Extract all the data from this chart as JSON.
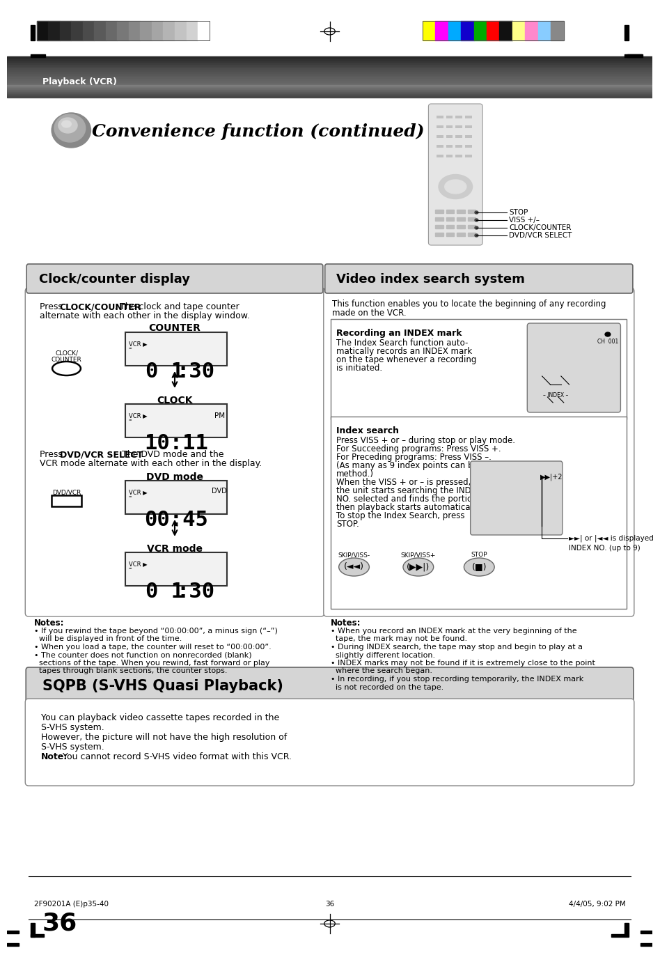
{
  "page_bg": "#ffffff",
  "header_text": "Playback (VCR)",
  "title_text": "Convenience function (continued)",
  "color_bars_left": [
    "#111111",
    "#1e1e1e",
    "#2d2d2d",
    "#3c3c3c",
    "#4b4b4b",
    "#5a5a5a",
    "#696969",
    "#787878",
    "#878787",
    "#969696",
    "#a5a5a5",
    "#b4b4b4",
    "#c3c3c3",
    "#d2d2d2",
    "#ffffff"
  ],
  "color_bars_right": [
    "#ffff00",
    "#ff00ff",
    "#00aaff",
    "#1100cc",
    "#00aa00",
    "#ff0000",
    "#111111",
    "#ffff88",
    "#ff88cc",
    "#88ccff",
    "#888888"
  ],
  "section_left_title": "Clock/counter display",
  "section_right_title": "Video index search system",
  "sqpb_title": "SQPB (S-VHS Quasi Playback)",
  "remote_labels": [
    "STOP",
    "VISS +/–",
    "CLOCK/COUNTER",
    "DVD/VCR SELECT"
  ],
  "index_intro_line1": "This function enables you to locate the beginning of any recording",
  "index_intro_line2": "made on the VCR.",
  "index_recording_title": "Recording an INDEX mark",
  "index_recording_text_lines": [
    "The Index Search function auto-",
    "matically records an INDEX mark",
    "on the tape whenever a recording",
    "is initiated."
  ],
  "index_search_title": "Index search",
  "index_search_lines": [
    "Press VISS + or – during stop or play mode.",
    "For Succeeding programs: Press VISS +.",
    "For Preceding programs: Press VISS –.",
    "(As many as 9 index points can be accessed via this",
    "method.)",
    "When the VISS + or – is pressed,",
    "the unit starts searching the INDEX",
    "NO. selected and finds the portion,",
    "then playback starts automatically.",
    "To stop the Index Search, press",
    "STOP."
  ],
  "index_displayed": "►►| or |◄◄ is displayed",
  "index_no": "INDEX NO. (up to 9)",
  "notes_left_title": "Notes:",
  "notes_left_lines": [
    "• If you rewind the tape beyond “00:00:00”, a minus sign (“–”)",
    "  will be displayed in front of the time.",
    "• When you load a tape, the counter will reset to “00:00:00”.",
    "• The counter does not function on nonrecorded (blank)",
    "  sections of the tape. When you rewind, fast forward or play",
    "  tapes through blank sections, the counter stops."
  ],
  "notes_right_title": "Notes:",
  "notes_right_lines": [
    "• When you record an INDEX mark at the very beginning of the",
    "  tape, the mark may not be found.",
    "• During INDEX search, the tape may stop and begin to play at a",
    "  slightly different location.",
    "• INDEX marks may not be found if it is extremely close to the point",
    "  where the search began.",
    "• In recording, if you stop recording temporarily, the INDEX mark",
    "  is not recorded on the tape."
  ],
  "sqpb_lines": [
    "You can playback video cassette tapes recorded in the",
    "S-VHS system.",
    "However, the picture will not have the high resolution of",
    "S-VHS system."
  ],
  "sqpb_note": "Note:",
  "sqpb_note_rest": " You cannot record S-VHS video format with this VCR.",
  "page_number": "36",
  "footer_left": "2F90201A (E)p35-40",
  "footer_center": "36",
  "footer_right": "4/4/05, 9:02 PM"
}
